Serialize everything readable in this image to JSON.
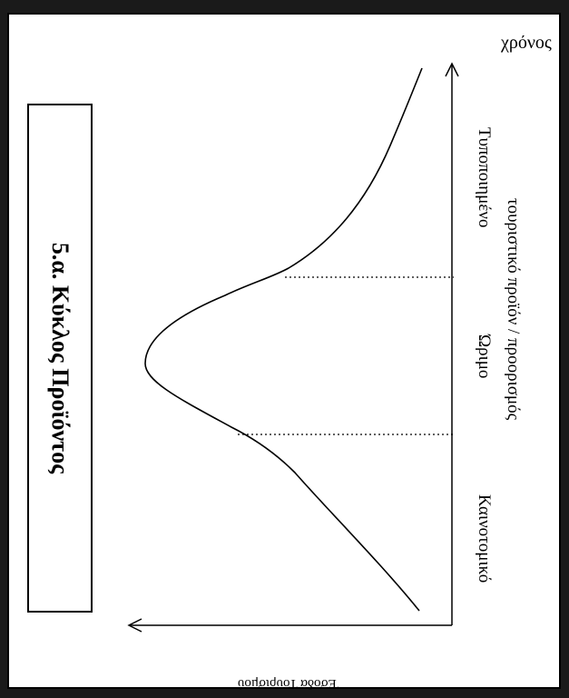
{
  "title": "5.α. Κύκλος Προϊόντος",
  "axes": {
    "y_label": "Έσοδα Τουρισμού",
    "x_label": "χρόνος"
  },
  "stages": [
    {
      "label": "Καινοτομικό"
    },
    {
      "label": "Ώριμο"
    },
    {
      "label": "Τυποποιημένο"
    }
  ],
  "stage_subtitle": "τουριστικό προϊόν / προορισμός",
  "colors": {
    "frame": "#1a1a1a",
    "ink": "#000000",
    "background": "#ffffff"
  }
}
